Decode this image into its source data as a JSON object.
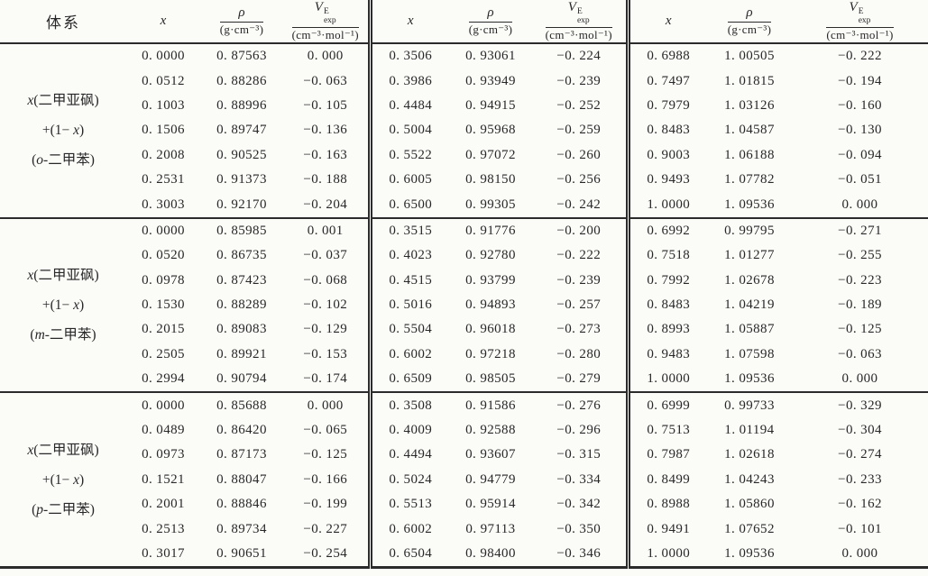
{
  "table": {
    "header": {
      "system": "体系",
      "x": "x",
      "rho_sym": "ρ",
      "rho_unit": "(g·cm⁻³)",
      "v_sym": "V",
      "v_sup": "E",
      "v_sub": "exp",
      "v_unit": "(cm⁻³·mol⁻¹)"
    },
    "groups": [
      {
        "label": [
          [
            {
              "t": "x",
              "i": true
            },
            {
              "t": "(二甲亚砜)"
            }
          ],
          [
            {
              "t": "+(1− "
            },
            {
              "t": "x",
              "i": true
            },
            {
              "t": ")"
            }
          ],
          [
            {
              "t": "("
            },
            {
              "t": "o",
              "i": true
            },
            {
              "t": "-二甲苯)"
            }
          ]
        ],
        "rows": [
          [
            "0. 0000",
            "0. 87563",
            "0. 000",
            "0. 3506",
            "0. 93061",
            "−0. 224",
            "0. 6988",
            "1. 00505",
            "−0. 222"
          ],
          [
            "0. 0512",
            "0. 88286",
            "−0. 063",
            "0. 3986",
            "0. 93949",
            "−0. 239",
            "0. 7497",
            "1. 01815",
            "−0. 194"
          ],
          [
            "0. 1003",
            "0. 88996",
            "−0. 105",
            "0. 4484",
            "0. 94915",
            "−0. 252",
            "0. 7979",
            "1. 03126",
            "−0. 160"
          ],
          [
            "0. 1506",
            "0. 89747",
            "−0. 136",
            "0. 5004",
            "0. 95968",
            "−0. 259",
            "0. 8483",
            "1. 04587",
            "−0. 130"
          ],
          [
            "0. 2008",
            "0. 90525",
            "−0. 163",
            "0. 5522",
            "0. 97072",
            "−0. 260",
            "0. 9003",
            "1. 06188",
            "−0. 094"
          ],
          [
            "0. 2531",
            "0. 91373",
            "−0. 188",
            "0. 6005",
            "0. 98150",
            "−0. 256",
            "0. 9493",
            "1. 07782",
            "−0. 051"
          ],
          [
            "0. 3003",
            "0. 92170",
            "−0. 204",
            "0. 6500",
            "0. 99305",
            "−0. 242",
            "1. 0000",
            "1. 09536",
            "0. 000"
          ]
        ]
      },
      {
        "label": [
          [
            {
              "t": "x",
              "i": true
            },
            {
              "t": "(二甲亚砜)"
            }
          ],
          [
            {
              "t": "+(1− "
            },
            {
              "t": "x",
              "i": true
            },
            {
              "t": ")"
            }
          ],
          [
            {
              "t": "("
            },
            {
              "t": "m",
              "i": true
            },
            {
              "t": "-二甲苯)"
            }
          ]
        ],
        "rows": [
          [
            "0. 0000",
            "0. 85985",
            "0. 001",
            "0. 3515",
            "0. 91776",
            "−0. 200",
            "0. 6992",
            "0. 99795",
            "−0. 271"
          ],
          [
            "0. 0520",
            "0. 86735",
            "−0. 037",
            "0. 4023",
            "0. 92780",
            "−0. 222",
            "0. 7518",
            "1. 01277",
            "−0. 255"
          ],
          [
            "0. 0978",
            "0. 87423",
            "−0. 068",
            "0. 4515",
            "0. 93799",
            "−0. 239",
            "0. 7992",
            "1. 02678",
            "−0. 223"
          ],
          [
            "0. 1530",
            "0. 88289",
            "−0. 102",
            "0. 5016",
            "0. 94893",
            "−0. 257",
            "0. 8483",
            "1. 04219",
            "−0. 189"
          ],
          [
            "0. 2015",
            "0. 89083",
            "−0. 129",
            "0. 5504",
            "0. 96018",
            "−0. 273",
            "0. 8993",
            "1. 05887",
            "−0. 125"
          ],
          [
            "0. 2505",
            "0. 89921",
            "−0. 153",
            "0. 6002",
            "0. 97218",
            "−0. 280",
            "0. 9483",
            "1. 07598",
            "−0. 063"
          ],
          [
            "0. 2994",
            "0. 90794",
            "−0. 174",
            "0. 6509",
            "0. 98505",
            "−0. 279",
            "1. 0000",
            "1. 09536",
            "0. 000"
          ]
        ]
      },
      {
        "label": [
          [
            {
              "t": "x",
              "i": true
            },
            {
              "t": "(二甲亚砜)"
            }
          ],
          [
            {
              "t": "+(1− "
            },
            {
              "t": "x",
              "i": true
            },
            {
              "t": ")"
            }
          ],
          [
            {
              "t": "("
            },
            {
              "t": "p",
              "i": true
            },
            {
              "t": "-二甲苯)"
            }
          ]
        ],
        "rows": [
          [
            "0. 0000",
            "0. 85688",
            "0. 000",
            "0. 3508",
            "0. 91586",
            "−0. 276",
            "0. 6999",
            "0. 99733",
            "−0. 329"
          ],
          [
            "0. 0489",
            "0. 86420",
            "−0. 065",
            "0. 4009",
            "0. 92588",
            "−0. 296",
            "0. 7513",
            "1. 01194",
            "−0. 304"
          ],
          [
            "0. 0973",
            "0. 87173",
            "−0. 125",
            "0. 4494",
            "0. 93607",
            "−0. 315",
            "0. 7987",
            "1. 02618",
            "−0. 274"
          ],
          [
            "0. 1521",
            "0. 88047",
            "−0. 166",
            "0. 5024",
            "0. 94779",
            "−0. 334",
            "0. 8499",
            "1. 04243",
            "−0. 233"
          ],
          [
            "0. 2001",
            "0. 88846",
            "−0. 199",
            "0. 5513",
            "0. 95914",
            "−0. 342",
            "0. 8988",
            "1. 05860",
            "−0. 162"
          ],
          [
            "0. 2513",
            "0. 89734",
            "−0. 227",
            "0. 6002",
            "0. 97113",
            "−0. 350",
            "0. 9491",
            "1. 07652",
            "−0. 101"
          ],
          [
            "0. 3017",
            "0. 90651",
            "−0. 254",
            "0. 6504",
            "0. 98400",
            "−0. 346",
            "1. 0000",
            "1. 09536",
            "0. 000"
          ]
        ]
      }
    ]
  }
}
